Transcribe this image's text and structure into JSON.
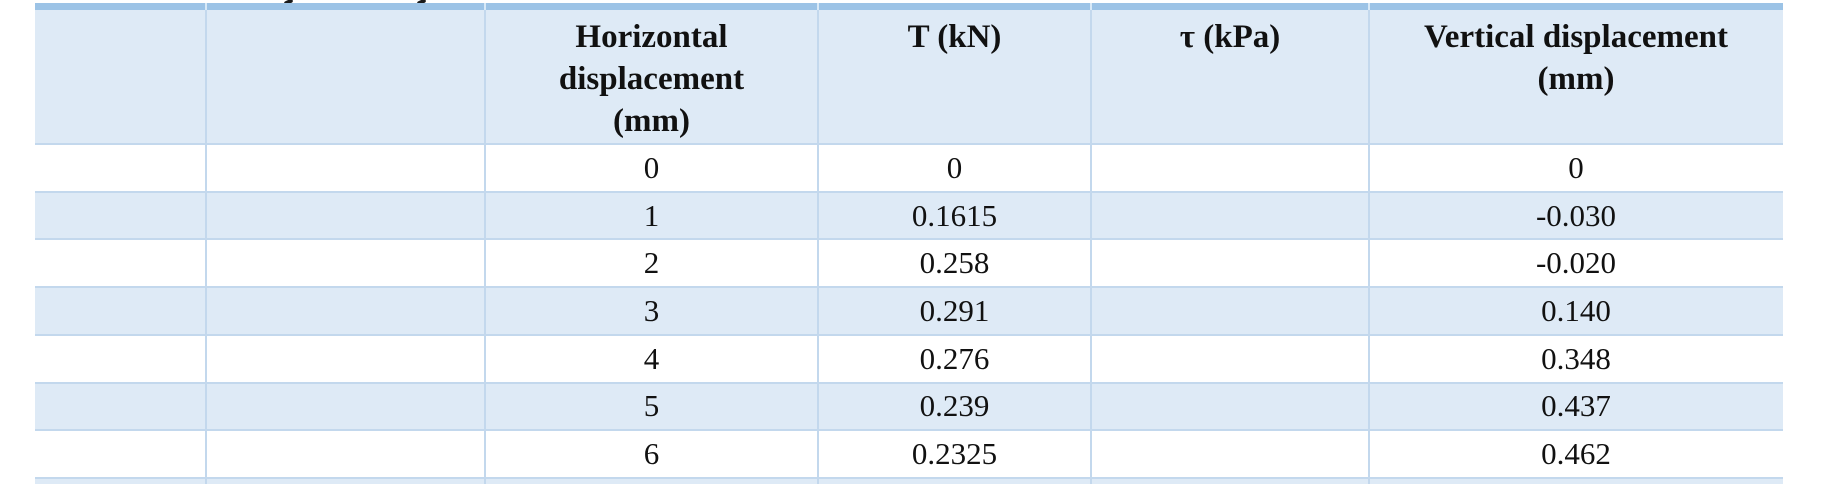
{
  "table": {
    "style": {
      "top_border_color": "#9CC3E6",
      "banded_fill_color": "#DEEAF6",
      "grid_line_color": "#C3D8ED",
      "bar_notch_color": "#D8E9F7",
      "text_color": "#111111"
    },
    "header": {
      "empty_1": "",
      "empty_2": "",
      "horizontal": "Horizontal\ndisplacement\n(mm)",
      "t": "T (kN)",
      "tau": "τ (kPa)",
      "vertical": "Vertical displacement\n(mm)"
    },
    "rows": [
      {
        "c0": "",
        "c1": "",
        "horizontal": "0",
        "t": "0",
        "tau": "",
        "vertical": "0"
      },
      {
        "c0": "",
        "c1": "",
        "horizontal": "1",
        "t": "0.1615",
        "tau": "",
        "vertical": "-0.030"
      },
      {
        "c0": "",
        "c1": "",
        "horizontal": "2",
        "t": "0.258",
        "tau": "",
        "vertical": "-0.020"
      },
      {
        "c0": "",
        "c1": "",
        "horizontal": "3",
        "t": "0.291",
        "tau": "",
        "vertical": "0.140"
      },
      {
        "c0": "",
        "c1": "",
        "horizontal": "4",
        "t": "0.276",
        "tau": "",
        "vertical": "0.348"
      },
      {
        "c0": "",
        "c1": "",
        "horizontal": "5",
        "t": "0.239",
        "tau": "",
        "vertical": "0.437"
      },
      {
        "c0": "",
        "c1": "",
        "horizontal": "6",
        "t": "0.2325",
        "tau": "",
        "vertical": "0.462"
      }
    ]
  }
}
